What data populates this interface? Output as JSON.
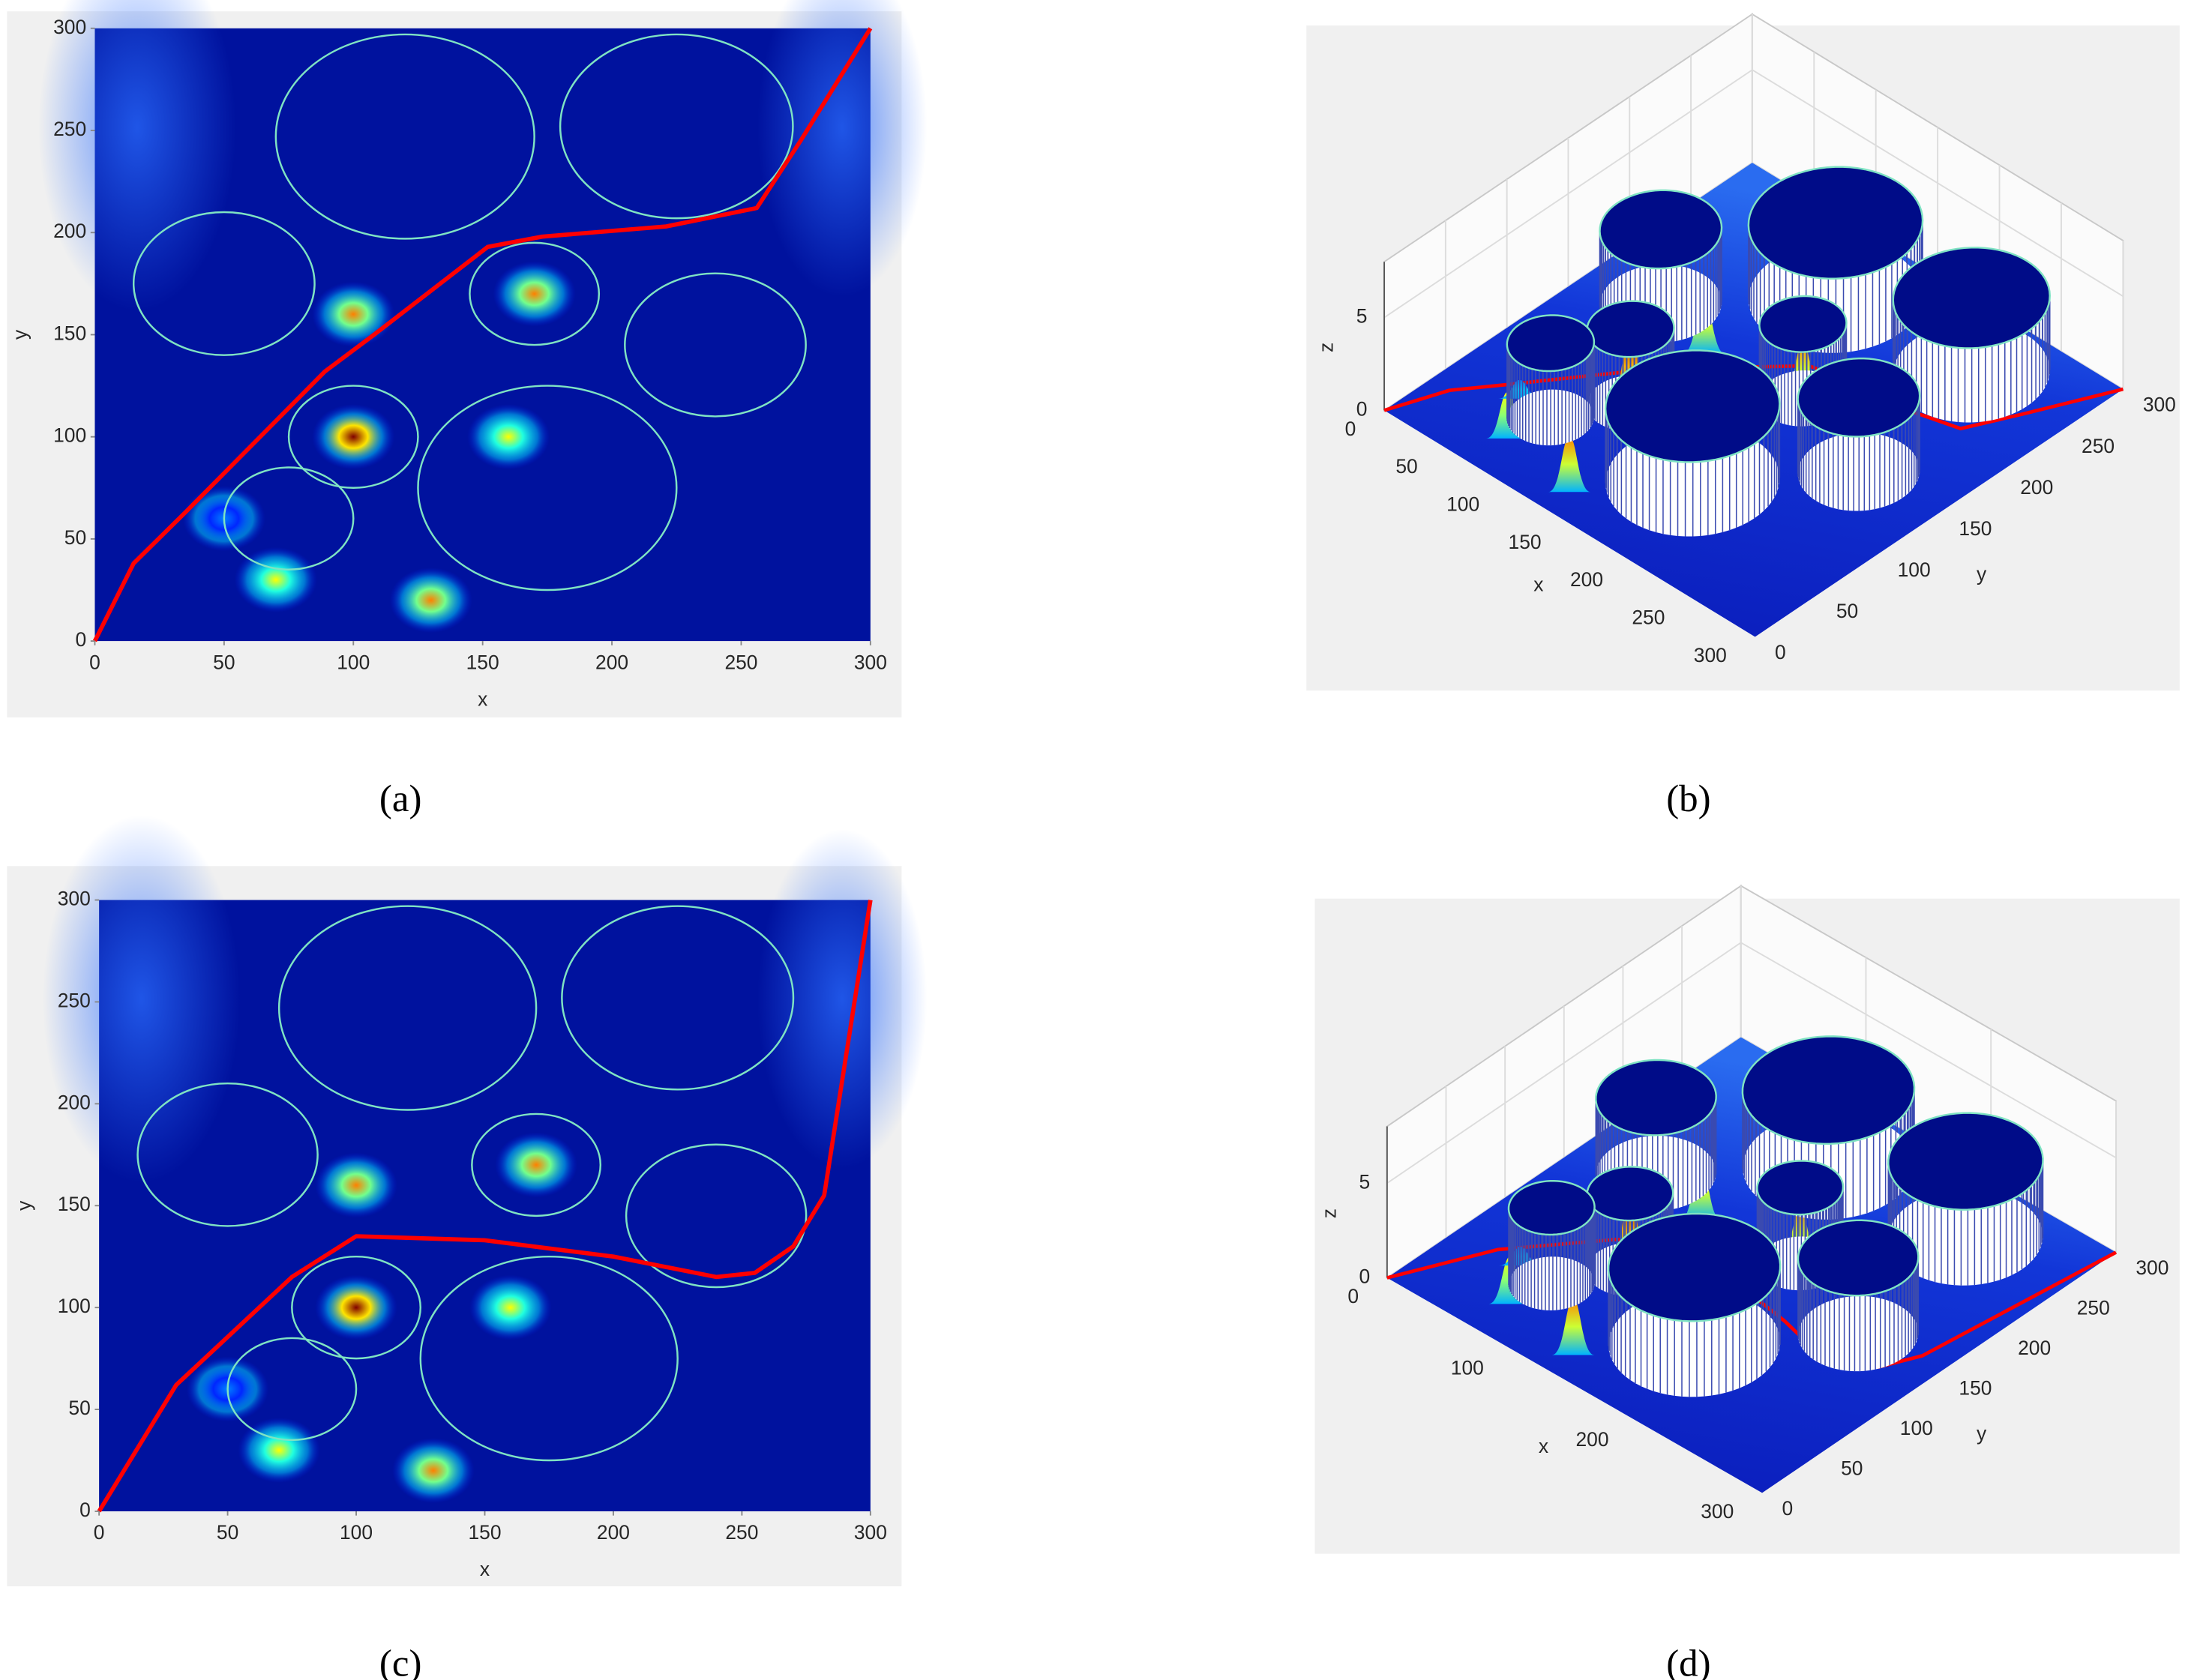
{
  "chart_data": [
    {
      "type": "heatmap",
      "label": "(a)",
      "xlabel": "x",
      "ylabel": "y",
      "xlim": [
        0,
        300
      ],
      "ylim": [
        0,
        300
      ],
      "xticks": [
        0,
        50,
        100,
        150,
        200,
        250,
        300
      ],
      "yticks": [
        0,
        50,
        100,
        150,
        200,
        250,
        300
      ],
      "circles": {
        "color": "#7fe3c3",
        "x": [
          120,
          225,
          50,
          170,
          240,
          100,
          175,
          75
        ],
        "y": [
          247,
          252,
          175,
          170,
          145,
          100,
          75,
          60
        ],
        "r": [
          50,
          45,
          35,
          25,
          35,
          25,
          50,
          25
        ]
      },
      "peaks": {
        "x": [
          100,
          170,
          100,
          160,
          70,
          130,
          50
        ],
        "y": [
          160,
          170,
          100,
          100,
          30,
          20,
          60
        ],
        "z": [
          3,
          3,
          4,
          2.5,
          2.5,
          3,
          1
        ]
      },
      "path": {
        "color": "#ff0000",
        "x": [
          0,
          15,
          35,
          89,
          108,
          152,
          173,
          221,
          256,
          273,
          300
        ],
        "y": [
          0,
          38,
          63,
          132,
          150,
          193,
          198,
          203,
          212,
          245,
          300
        ]
      }
    },
    {
      "type": "surface",
      "label": "(b)",
      "xlabel": "x",
      "ylabel": "y",
      "zlabel": "z",
      "xlim": [
        0,
        300
      ],
      "ylim": [
        0,
        300
      ],
      "zlim": [
        0,
        8
      ],
      "xticks": [
        0,
        50,
        100,
        150,
        200,
        250,
        300
      ],
      "yticks": [
        0,
        50,
        100,
        150,
        200,
        250,
        300
      ],
      "zticks": [
        0,
        5
      ],
      "cylinder_height": 4,
      "circles": {
        "color": "#7fe3c3",
        "x": [
          120,
          225,
          50,
          170,
          240,
          100,
          175,
          75
        ],
        "y": [
          247,
          252,
          175,
          170,
          145,
          100,
          75,
          60
        ],
        "r": [
          50,
          45,
          35,
          25,
          35,
          25,
          50,
          25
        ]
      },
      "peaks": {
        "x": [
          100,
          170,
          100,
          160,
          70,
          130,
          50
        ],
        "y": [
          160,
          170,
          100,
          100,
          30,
          20,
          60
        ],
        "z": [
          3,
          3,
          4,
          2.5,
          2.5,
          3,
          1
        ]
      },
      "path": {
        "color": "#ff0000",
        "x": [
          0,
          15,
          35,
          89,
          108,
          152,
          173,
          221,
          256,
          273,
          300
        ],
        "y": [
          0,
          38,
          63,
          132,
          150,
          193,
          198,
          203,
          212,
          245,
          300
        ]
      }
    },
    {
      "type": "heatmap",
      "label": "(c)",
      "xlabel": "x",
      "ylabel": "y",
      "xlim": [
        0,
        300
      ],
      "ylim": [
        0,
        300
      ],
      "xticks": [
        0,
        50,
        100,
        150,
        200,
        250,
        300
      ],
      "yticks": [
        0,
        50,
        100,
        150,
        200,
        250,
        300
      ],
      "circles": {
        "color": "#7fe3c3",
        "x": [
          120,
          225,
          50,
          170,
          240,
          100,
          175,
          75
        ],
        "y": [
          247,
          252,
          175,
          170,
          145,
          100,
          75,
          60
        ],
        "r": [
          50,
          45,
          35,
          25,
          35,
          25,
          50,
          25
        ]
      },
      "peaks": {
        "x": [
          100,
          170,
          100,
          160,
          70,
          130,
          50
        ],
        "y": [
          160,
          170,
          100,
          100,
          30,
          20,
          60
        ],
        "z": [
          3,
          3,
          4,
          2.5,
          2.5,
          3,
          1
        ]
      },
      "path": {
        "color": "#ff0000",
        "x": [
          0,
          30,
          75,
          100,
          150,
          200,
          240,
          255,
          270,
          282,
          300
        ],
        "y": [
          0,
          62,
          115,
          135,
          133,
          125,
          115,
          117,
          130,
          155,
          300
        ]
      }
    },
    {
      "type": "surface",
      "label": "(d)",
      "xlabel": "x",
      "ylabel": "y",
      "zlabel": "z",
      "xlim": [
        0,
        300
      ],
      "ylim": [
        0,
        300
      ],
      "zlim": [
        0,
        8
      ],
      "xticks": [
        0,
        100,
        200,
        300
      ],
      "yticks": [
        0,
        50,
        100,
        150,
        200,
        250,
        300
      ],
      "zticks": [
        0,
        5
      ],
      "cylinder_height": 4,
      "circles": {
        "color": "#7fe3c3",
        "x": [
          120,
          225,
          50,
          170,
          240,
          100,
          175,
          75
        ],
        "y": [
          247,
          252,
          175,
          170,
          145,
          100,
          75,
          60
        ],
        "r": [
          50,
          45,
          35,
          25,
          35,
          25,
          50,
          25
        ]
      },
      "peaks": {
        "x": [
          100,
          170,
          100,
          160,
          70,
          130,
          50
        ],
        "y": [
          160,
          170,
          100,
          100,
          30,
          20,
          60
        ],
        "z": [
          3,
          3,
          4,
          2.5,
          2.5,
          3,
          1
        ]
      },
      "path": {
        "color": "#ff0000",
        "x": [
          0,
          30,
          75,
          100,
          150,
          200,
          240,
          255,
          270,
          282,
          300
        ],
        "y": [
          0,
          62,
          115,
          135,
          133,
          125,
          115,
          117,
          130,
          155,
          300
        ]
      }
    }
  ]
}
